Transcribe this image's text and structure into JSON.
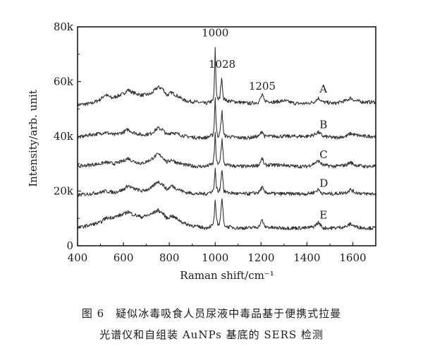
{
  "chart_data": {
    "type": "line",
    "xlabel": "Raman shift/cm⁻¹",
    "ylabel": "Intensity/arb. unit",
    "xlim": [
      400,
      1700
    ],
    "ylim": [
      0,
      80000
    ],
    "x_ticks": [
      400,
      600,
      800,
      1000,
      1200,
      1400,
      1600
    ],
    "x_tick_labels": [
      "400",
      "600",
      "800",
      "1000",
      "1200",
      "1400",
      "1600"
    ],
    "y_ticks": [
      0,
      20000,
      40000,
      60000,
      80000
    ],
    "y_tick_labels": [
      "0",
      "20k",
      "40k",
      "60k",
      "80k"
    ],
    "grid": false,
    "legend": "none",
    "line_color": "#333333",
    "peak_annotations": [
      {
        "text": "1000",
        "x": 1000,
        "y": 76500
      },
      {
        "text": "1028",
        "x": 1030,
        "y": 65000
      },
      {
        "text": "1205",
        "x": 1205,
        "y": 57000
      }
    ],
    "series": [
      {
        "name": "A",
        "label_x": 1455,
        "label_y": 56000,
        "points": [
          [
            400,
            51500
          ],
          [
            460,
            52000
          ],
          [
            500,
            53500
          ],
          [
            520,
            55200
          ],
          [
            550,
            54000
          ],
          [
            600,
            55500
          ],
          [
            620,
            57000
          ],
          [
            640,
            56000
          ],
          [
            680,
            55000
          ],
          [
            720,
            55500
          ],
          [
            750,
            58000
          ],
          [
            770,
            57500
          ],
          [
            790,
            55000
          ],
          [
            810,
            56000
          ],
          [
            830,
            55000
          ],
          [
            870,
            53000
          ],
          [
            920,
            52500
          ],
          [
            960,
            52000
          ],
          [
            990,
            53000
          ],
          [
            995,
            56000
          ],
          [
            1000,
            72000
          ],
          [
            1005,
            56000
          ],
          [
            1012,
            53500
          ],
          [
            1020,
            54000
          ],
          [
            1028,
            61500
          ],
          [
            1036,
            54000
          ],
          [
            1050,
            53000
          ],
          [
            1100,
            52500
          ],
          [
            1150,
            52000
          ],
          [
            1190,
            52500
          ],
          [
            1205,
            55200
          ],
          [
            1215,
            53000
          ],
          [
            1260,
            52500
          ],
          [
            1300,
            53000
          ],
          [
            1350,
            52000
          ],
          [
            1400,
            52000
          ],
          [
            1430,
            52500
          ],
          [
            1450,
            54000
          ],
          [
            1470,
            52500
          ],
          [
            1520,
            52000
          ],
          [
            1570,
            53000
          ],
          [
            1590,
            54000
          ],
          [
            1610,
            53000
          ],
          [
            1650,
            52500
          ],
          [
            1700,
            52500
          ]
        ]
      },
      {
        "name": "B",
        "label_x": 1455,
        "label_y": 43000,
        "points": [
          [
            400,
            39500
          ],
          [
            450,
            40500
          ],
          [
            500,
            41000
          ],
          [
            520,
            41500
          ],
          [
            560,
            40500
          ],
          [
            600,
            41500
          ],
          [
            620,
            42500
          ],
          [
            640,
            41500
          ],
          [
            680,
            40500
          ],
          [
            720,
            41000
          ],
          [
            750,
            43000
          ],
          [
            770,
            42500
          ],
          [
            790,
            40500
          ],
          [
            810,
            41500
          ],
          [
            830,
            41000
          ],
          [
            870,
            40000
          ],
          [
            920,
            39500
          ],
          [
            960,
            39500
          ],
          [
            990,
            40500
          ],
          [
            995,
            43000
          ],
          [
            1000,
            54500
          ],
          [
            1005,
            43000
          ],
          [
            1012,
            40000
          ],
          [
            1020,
            41000
          ],
          [
            1030,
            49000
          ],
          [
            1038,
            40500
          ],
          [
            1050,
            40000
          ],
          [
            1100,
            39500
          ],
          [
            1150,
            39500
          ],
          [
            1190,
            40000
          ],
          [
            1205,
            42000
          ],
          [
            1215,
            40000
          ],
          [
            1260,
            40000
          ],
          [
            1300,
            40000
          ],
          [
            1350,
            40000
          ],
          [
            1400,
            40000
          ],
          [
            1430,
            40500
          ],
          [
            1450,
            41500
          ],
          [
            1470,
            40000
          ],
          [
            1520,
            39500
          ],
          [
            1570,
            40000
          ],
          [
            1590,
            41000
          ],
          [
            1610,
            40500
          ],
          [
            1650,
            40000
          ],
          [
            1700,
            40000
          ]
        ]
      },
      {
        "name": "C",
        "label_x": 1455,
        "label_y": 32000,
        "points": [
          [
            400,
            29000
          ],
          [
            450,
            29500
          ],
          [
            500,
            30000
          ],
          [
            520,
            30500
          ],
          [
            560,
            30000
          ],
          [
            600,
            31000
          ],
          [
            620,
            32000
          ],
          [
            640,
            31000
          ],
          [
            680,
            30000
          ],
          [
            720,
            31500
          ],
          [
            750,
            33500
          ],
          [
            770,
            32500
          ],
          [
            790,
            30500
          ],
          [
            810,
            31500
          ],
          [
            830,
            30500
          ],
          [
            870,
            29500
          ],
          [
            920,
            29000
          ],
          [
            960,
            29000
          ],
          [
            990,
            30000
          ],
          [
            995,
            32500
          ],
          [
            1000,
            41000
          ],
          [
            1005,
            32000
          ],
          [
            1012,
            29500
          ],
          [
            1020,
            30500
          ],
          [
            1030,
            39000
          ],
          [
            1038,
            30000
          ],
          [
            1050,
            29500
          ],
          [
            1100,
            29000
          ],
          [
            1150,
            29000
          ],
          [
            1190,
            29500
          ],
          [
            1205,
            32000
          ],
          [
            1215,
            29500
          ],
          [
            1260,
            29500
          ],
          [
            1300,
            29500
          ],
          [
            1350,
            29000
          ],
          [
            1400,
            29000
          ],
          [
            1430,
            30000
          ],
          [
            1450,
            31000
          ],
          [
            1470,
            29500
          ],
          [
            1520,
            29000
          ],
          [
            1570,
            29500
          ],
          [
            1590,
            30500
          ],
          [
            1610,
            29500
          ],
          [
            1650,
            29000
          ],
          [
            1700,
            29000
          ]
        ]
      },
      {
        "name": "D",
        "label_x": 1455,
        "label_y": 21500,
        "points": [
          [
            400,
            18500
          ],
          [
            450,
            19000
          ],
          [
            500,
            19500
          ],
          [
            520,
            20000
          ],
          [
            560,
            19500
          ],
          [
            600,
            20500
          ],
          [
            620,
            22000
          ],
          [
            640,
            21000
          ],
          [
            680,
            20000
          ],
          [
            720,
            21000
          ],
          [
            750,
            23500
          ],
          [
            770,
            22500
          ],
          [
            790,
            20500
          ],
          [
            810,
            22000
          ],
          [
            830,
            21000
          ],
          [
            870,
            19500
          ],
          [
            920,
            19000
          ],
          [
            960,
            19000
          ],
          [
            990,
            20000
          ],
          [
            995,
            22000
          ],
          [
            1000,
            28000
          ],
          [
            1005,
            22000
          ],
          [
            1012,
            19500
          ],
          [
            1020,
            20500
          ],
          [
            1030,
            28000
          ],
          [
            1038,
            20000
          ],
          [
            1050,
            19500
          ],
          [
            1100,
            19000
          ],
          [
            1150,
            19000
          ],
          [
            1190,
            19500
          ],
          [
            1205,
            21500
          ],
          [
            1215,
            19500
          ],
          [
            1260,
            19000
          ],
          [
            1300,
            19000
          ],
          [
            1350,
            19000
          ],
          [
            1400,
            19000
          ],
          [
            1430,
            19500
          ],
          [
            1450,
            20500
          ],
          [
            1470,
            19000
          ],
          [
            1520,
            19000
          ],
          [
            1570,
            19500
          ],
          [
            1590,
            20500
          ],
          [
            1610,
            19500
          ],
          [
            1650,
            19000
          ],
          [
            1700,
            19000
          ]
        ]
      },
      {
        "name": "E",
        "label_x": 1455,
        "label_y": 10000,
        "points": [
          [
            400,
            6500
          ],
          [
            450,
            7500
          ],
          [
            500,
            8500
          ],
          [
            520,
            10000
          ],
          [
            560,
            10500
          ],
          [
            600,
            11500
          ],
          [
            620,
            12500
          ],
          [
            640,
            11500
          ],
          [
            680,
            10500
          ],
          [
            720,
            11500
          ],
          [
            750,
            13000
          ],
          [
            770,
            12000
          ],
          [
            790,
            10000
          ],
          [
            810,
            11000
          ],
          [
            830,
            10000
          ],
          [
            870,
            8000
          ],
          [
            920,
            7000
          ],
          [
            960,
            6500
          ],
          [
            990,
            7500
          ],
          [
            995,
            10000
          ],
          [
            1000,
            17000
          ],
          [
            1005,
            10000
          ],
          [
            1012,
            7500
          ],
          [
            1020,
            8500
          ],
          [
            1030,
            17500
          ],
          [
            1038,
            8000
          ],
          [
            1050,
            7000
          ],
          [
            1100,
            6500
          ],
          [
            1150,
            6500
          ],
          [
            1190,
            7000
          ],
          [
            1205,
            9500
          ],
          [
            1215,
            7000
          ],
          [
            1260,
            6500
          ],
          [
            1300,
            6500
          ],
          [
            1350,
            6500
          ],
          [
            1400,
            6500
          ],
          [
            1430,
            7000
          ],
          [
            1450,
            8500
          ],
          [
            1470,
            6500
          ],
          [
            1520,
            6500
          ],
          [
            1570,
            7000
          ],
          [
            1590,
            8000
          ],
          [
            1610,
            7000
          ],
          [
            1650,
            6500
          ],
          [
            1700,
            6500
          ]
        ]
      }
    ]
  },
  "caption": {
    "line1": "图 6　疑似冰毒吸食人员尿液中毒品基于便携式拉曼",
    "line2": "光谱仪和自组装 AuNPs 基底的 SERS 检测"
  }
}
